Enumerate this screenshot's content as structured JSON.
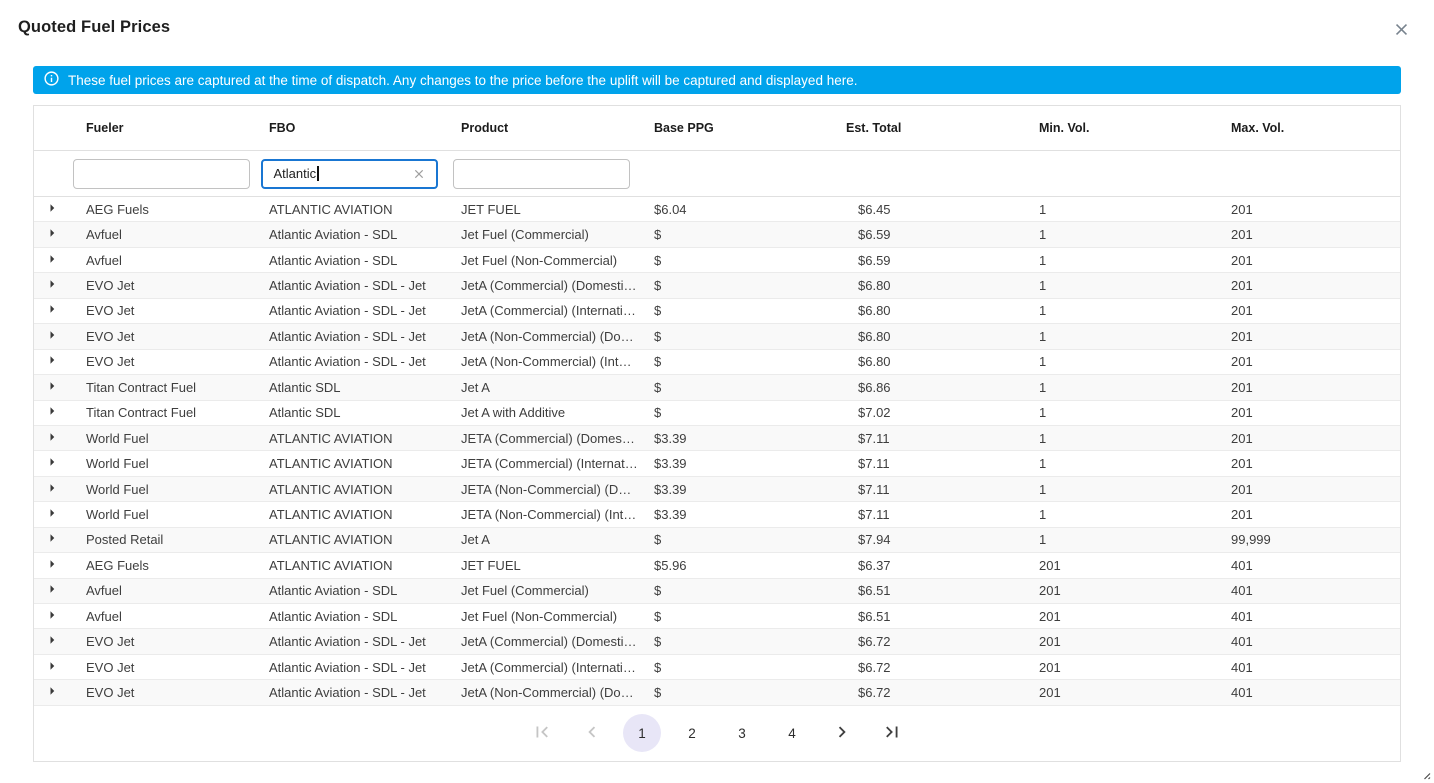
{
  "dialog": {
    "title": "Quoted Fuel Prices"
  },
  "banner": {
    "text": "These fuel prices are captured at the time of dispatch. Any changes to the price before the uplift will be captured and displayed here."
  },
  "table": {
    "columns": [
      "Fueler",
      "FBO",
      "Product",
      "Base PPG",
      "Est. Total",
      "Min. Vol.",
      "Max. Vol."
    ],
    "filters": {
      "fueler": "",
      "fbo": "Atlantic",
      "product": ""
    },
    "rows": [
      {
        "fueler": "AEG Fuels",
        "fbo": "ATLANTIC AVIATION",
        "product": "JET FUEL",
        "base_ppg": "$6.04",
        "est_total": "$6.45",
        "min_vol": "1",
        "max_vol": "201"
      },
      {
        "fueler": "Avfuel",
        "fbo": "Atlantic Aviation - SDL",
        "product": "Jet Fuel (Commercial)",
        "base_ppg": "$",
        "est_total": "$6.59",
        "min_vol": "1",
        "max_vol": "201"
      },
      {
        "fueler": "Avfuel",
        "fbo": "Atlantic Aviation - SDL",
        "product": "Jet Fuel (Non-Commercial)",
        "base_ppg": "$",
        "est_total": "$6.59",
        "min_vol": "1",
        "max_vol": "201"
      },
      {
        "fueler": "EVO Jet",
        "fbo": "Atlantic Aviation - SDL - Jet",
        "product": "JetA (Commercial) (Domesti…",
        "base_ppg": "$",
        "est_total": "$6.80",
        "min_vol": "1",
        "max_vol": "201"
      },
      {
        "fueler": "EVO Jet",
        "fbo": "Atlantic Aviation - SDL - Jet",
        "product": "JetA (Commercial) (Internati…",
        "base_ppg": "$",
        "est_total": "$6.80",
        "min_vol": "1",
        "max_vol": "201"
      },
      {
        "fueler": "EVO Jet",
        "fbo": "Atlantic Aviation - SDL - Jet",
        "product": "JetA (Non-Commercial) (Do…",
        "base_ppg": "$",
        "est_total": "$6.80",
        "min_vol": "1",
        "max_vol": "201"
      },
      {
        "fueler": "EVO Jet",
        "fbo": "Atlantic Aviation - SDL - Jet",
        "product": "JetA (Non-Commercial) (Inte…",
        "base_ppg": "$",
        "est_total": "$6.80",
        "min_vol": "1",
        "max_vol": "201"
      },
      {
        "fueler": "Titan Contract Fuel",
        "fbo": "Atlantic SDL",
        "product": "Jet A",
        "base_ppg": "$",
        "est_total": "$6.86",
        "min_vol": "1",
        "max_vol": "201"
      },
      {
        "fueler": "Titan Contract Fuel",
        "fbo": "Atlantic SDL",
        "product": "Jet A with Additive",
        "base_ppg": "$",
        "est_total": "$7.02",
        "min_vol": "1",
        "max_vol": "201"
      },
      {
        "fueler": "World Fuel",
        "fbo": "ATLANTIC AVIATION",
        "product": "JETA (Commercial) (Domest…",
        "base_ppg": "$3.39",
        "est_total": "$7.11",
        "min_vol": "1",
        "max_vol": "201"
      },
      {
        "fueler": "World Fuel",
        "fbo": "ATLANTIC AVIATION",
        "product": "JETA (Commercial) (Internat…",
        "base_ppg": "$3.39",
        "est_total": "$7.11",
        "min_vol": "1",
        "max_vol": "201"
      },
      {
        "fueler": "World Fuel",
        "fbo": "ATLANTIC AVIATION",
        "product": "JETA (Non-Commercial) (Do…",
        "base_ppg": "$3.39",
        "est_total": "$7.11",
        "min_vol": "1",
        "max_vol": "201"
      },
      {
        "fueler": "World Fuel",
        "fbo": "ATLANTIC AVIATION",
        "product": "JETA (Non-Commercial) (Int…",
        "base_ppg": "$3.39",
        "est_total": "$7.11",
        "min_vol": "1",
        "max_vol": "201"
      },
      {
        "fueler": "Posted Retail",
        "fbo": "ATLANTIC AVIATION",
        "product": "Jet A",
        "base_ppg": "$",
        "est_total": "$7.94",
        "min_vol": "1",
        "max_vol": "99,999"
      },
      {
        "fueler": "AEG Fuels",
        "fbo": "ATLANTIC AVIATION",
        "product": "JET FUEL",
        "base_ppg": "$5.96",
        "est_total": "$6.37",
        "min_vol": "201",
        "max_vol": "401"
      },
      {
        "fueler": "Avfuel",
        "fbo": "Atlantic Aviation - SDL",
        "product": "Jet Fuel (Commercial)",
        "base_ppg": "$",
        "est_total": "$6.51",
        "min_vol": "201",
        "max_vol": "401"
      },
      {
        "fueler": "Avfuel",
        "fbo": "Atlantic Aviation - SDL",
        "product": "Jet Fuel (Non-Commercial)",
        "base_ppg": "$",
        "est_total": "$6.51",
        "min_vol": "201",
        "max_vol": "401"
      },
      {
        "fueler": "EVO Jet",
        "fbo": "Atlantic Aviation - SDL - Jet",
        "product": "JetA (Commercial) (Domesti…",
        "base_ppg": "$",
        "est_total": "$6.72",
        "min_vol": "201",
        "max_vol": "401"
      },
      {
        "fueler": "EVO Jet",
        "fbo": "Atlantic Aviation - SDL - Jet",
        "product": "JetA (Commercial) (Internati…",
        "base_ppg": "$",
        "est_total": "$6.72",
        "min_vol": "201",
        "max_vol": "401"
      },
      {
        "fueler": "EVO Jet",
        "fbo": "Atlantic Aviation - SDL - Jet",
        "product": "JetA (Non-Commercial) (Do…",
        "base_ppg": "$",
        "est_total": "$6.72",
        "min_vol": "201",
        "max_vol": "401"
      }
    ]
  },
  "pagination": {
    "pages": [
      "1",
      "2",
      "3",
      "4"
    ],
    "active_page": "1"
  },
  "icons": {
    "info": "ⓘ",
    "close": "✕",
    "clear": "✕",
    "expand_row": "▶",
    "first_page": "|<",
    "prev_page": "<",
    "next_page": ">",
    "last_page": ">|"
  },
  "colors": {
    "banner_bg": "#00a3eb",
    "banner_text": "#ffffff",
    "focus_border": "#1976d2",
    "active_page_bg": "#e8e6f7",
    "disabled_nav": "#c5c5c5",
    "enabled_nav": "#3f3f3f"
  }
}
